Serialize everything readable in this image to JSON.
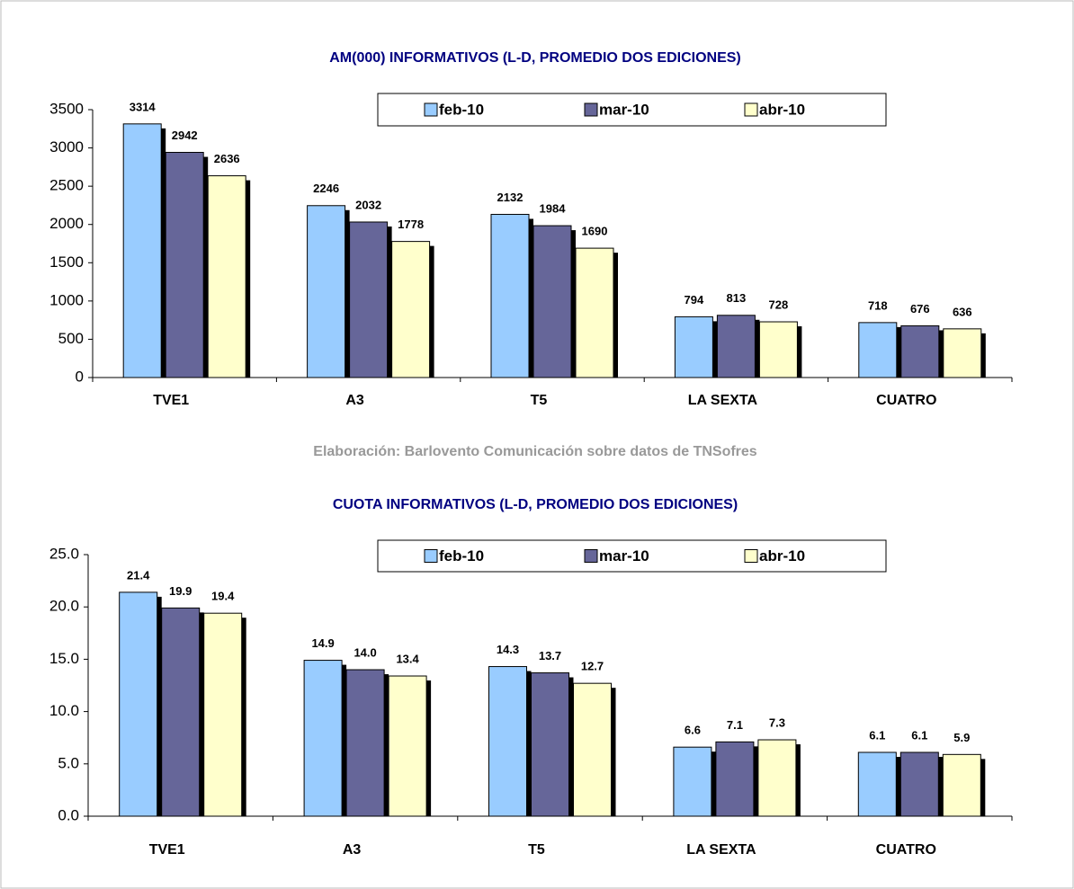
{
  "chart_data": [
    {
      "type": "bar",
      "title": "AM(000) INFORMATIVOS (L-D, PROMEDIO DOS EDICIONES)",
      "categories": [
        "TVE1",
        "A3",
        "T5",
        "LA SEXTA",
        "CUATRO"
      ],
      "series": [
        {
          "name": "feb-10",
          "color": "#99ccff",
          "values": [
            3314,
            2246,
            2132,
            794,
            718
          ]
        },
        {
          "name": "mar-10",
          "color": "#666699",
          "values": [
            2942,
            2032,
            1984,
            813,
            676
          ]
        },
        {
          "name": "abr-10",
          "color": "#ffffcc",
          "values": [
            2636,
            1778,
            1690,
            728,
            636
          ]
        }
      ],
      "ylim": [
        0,
        3500
      ],
      "yticks": [
        0,
        500,
        1000,
        1500,
        2000,
        2500,
        3000,
        3500
      ],
      "legend": "top"
    },
    {
      "type": "bar",
      "title": "CUOTA INFORMATIVOS (L-D, PROMEDIO DOS EDICIONES)",
      "categories": [
        "TVE1",
        "A3",
        "T5",
        "LA SEXTA",
        "CUATRO"
      ],
      "series": [
        {
          "name": "feb-10",
          "color": "#99ccff",
          "values": [
            21.4,
            14.9,
            14.3,
            6.6,
            6.1
          ],
          "value_labels": [
            "21.4",
            "14.9",
            "14.3",
            "6.6",
            "6.1"
          ]
        },
        {
          "name": "mar-10",
          "color": "#666699",
          "values": [
            19.9,
            14.0,
            13.7,
            7.1,
            6.1
          ],
          "value_labels": [
            "19.9",
            "14.0",
            "13.7",
            "7.1",
            "6.1"
          ]
        },
        {
          "name": "abr-10",
          "color": "#ffffcc",
          "values": [
            19.4,
            13.4,
            12.7,
            7.3,
            5.9
          ],
          "value_labels": [
            "19.4",
            "13.4",
            "12.7",
            "7.3",
            "5.9"
          ]
        }
      ],
      "ylim": [
        0,
        25
      ],
      "yticks": [
        {
          "value": 0,
          "label": "0.0"
        },
        {
          "value": 5,
          "label": "5.0"
        },
        {
          "value": 10,
          "label": "10.0"
        },
        {
          "value": 15,
          "label": "15.0"
        },
        {
          "value": 20,
          "label": "20.0"
        },
        {
          "value": 25,
          "label": "25.0"
        }
      ],
      "legend": "top"
    }
  ],
  "source": "Elaboración: Barlovento Comunicación sobre datos de TNSofres"
}
